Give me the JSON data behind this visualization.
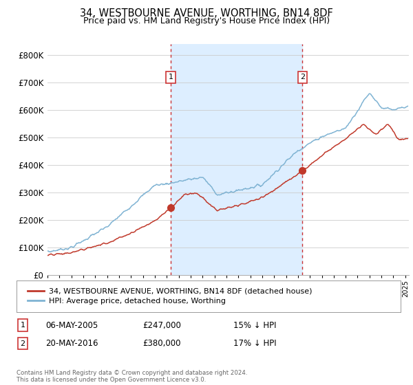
{
  "title": "34, WESTBOURNE AVENUE, WORTHING, BN14 8DF",
  "subtitle": "Price paid vs. HM Land Registry's House Price Index (HPI)",
  "ytick_values": [
    0,
    100000,
    200000,
    300000,
    400000,
    500000,
    600000,
    700000,
    800000
  ],
  "ylim": [
    0,
    840000
  ],
  "xlim_start": 1995.0,
  "xlim_end": 2025.3,
  "sale1_x": 2005.35,
  "sale1_y": 247000,
  "sale1_label": "1",
  "sale2_x": 2016.38,
  "sale2_y": 380000,
  "sale2_label": "2",
  "red_color": "#c0392b",
  "blue_color": "#7fb3d3",
  "vline_color": "#cc3333",
  "shade_color": "#ddeeff",
  "grid_color": "#cccccc",
  "bg_color": "#ffffff",
  "legend_line1": "34, WESTBOURNE AVENUE, WORTHING, BN14 8DF (detached house)",
  "legend_line2": "HPI: Average price, detached house, Worthing",
  "table_row1": [
    "1",
    "06-MAY-2005",
    "£247,000",
    "15% ↓ HPI"
  ],
  "table_row2": [
    "2",
    "20-MAY-2016",
    "£380,000",
    "17% ↓ HPI"
  ],
  "footer": "Contains HM Land Registry data © Crown copyright and database right 2024.\nThis data is licensed under the Open Government Licence v3.0.",
  "title_fontsize": 10.5,
  "subtitle_fontsize": 9,
  "tick_fontsize": 8.5
}
